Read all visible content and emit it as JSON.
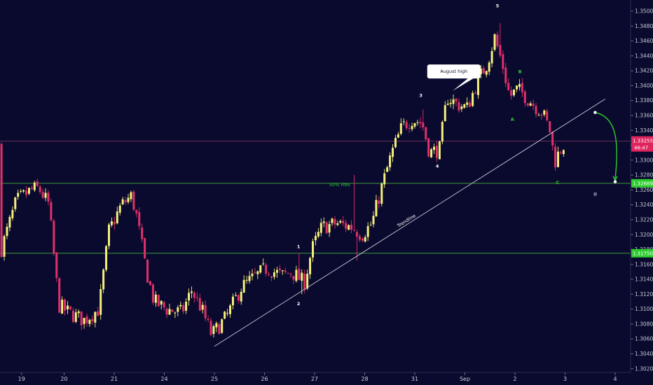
{
  "chart_data": {
    "type": "candlestick",
    "colors": {
      "background": "#0a0a2e",
      "up": "#f5f07a",
      "down": "#e0306a",
      "grid": "#1a1a44",
      "level_line": "#3c9a3c",
      "current_line": "#6a2f5a",
      "label_green": "#2ecc2e",
      "label_red": "#e0245e",
      "trendline": "#c8c8d8",
      "wave_text": "#ffffff",
      "abc_text": "#2ecc2e"
    },
    "y_range": [
      1.3015,
      1.3515
    ],
    "y_ticks": [
      "1.35000",
      "1.34800",
      "1.34600",
      "1.34400",
      "1.34200",
      "1.34000",
      "1.33800",
      "1.33600",
      "1.33400",
      "1.33200",
      "1.33000",
      "1.32800",
      "1.32600",
      "1.32400",
      "1.32200",
      "1.32000",
      "1.31800",
      "1.31600",
      "1.31400",
      "1.31200",
      "1.31000",
      "1.30800",
      "1.30600",
      "1.30400",
      "1.30200"
    ],
    "x_ticks": [
      {
        "label": "19",
        "t": 0.15
      },
      {
        "label": "20",
        "t": 1.0
      },
      {
        "label": "21",
        "t": 2.0
      },
      {
        "label": "24",
        "t": 3.0
      },
      {
        "label": "25",
        "t": 4.0
      },
      {
        "label": "26",
        "t": 5.0
      },
      {
        "label": "27",
        "t": 6.0
      },
      {
        "label": "28",
        "t": 7.0
      },
      {
        "label": "31",
        "t": 8.0
      },
      {
        "label": "Sep",
        "t": 9.0
      },
      {
        "label": "2",
        "t": 10.0
      },
      {
        "label": "3",
        "t": 11.0
      },
      {
        "label": "4",
        "t": 12.0
      }
    ],
    "price_path": [
      [
        -0.2,
        1.318
      ],
      [
        0.1,
        1.3245
      ],
      [
        0.4,
        1.326
      ],
      [
        0.55,
        1.3262
      ],
      [
        0.75,
        1.324
      ],
      [
        0.95,
        1.3105
      ],
      [
        1.15,
        1.3095
      ],
      [
        1.45,
        1.3085
      ],
      [
        1.75,
        1.31
      ],
      [
        1.95,
        1.3205
      ],
      [
        2.2,
        1.324
      ],
      [
        2.4,
        1.3252
      ],
      [
        2.5,
        1.3225
      ],
      [
        2.7,
        1.315
      ],
      [
        2.85,
        1.311
      ],
      [
        3.1,
        1.31
      ],
      [
        3.4,
        1.3095
      ],
      [
        3.6,
        1.3125
      ],
      [
        3.8,
        1.31
      ],
      [
        4.0,
        1.3065
      ],
      [
        4.3,
        1.309
      ],
      [
        4.6,
        1.313
      ],
      [
        4.9,
        1.3145
      ],
      [
        5.1,
        1.3155
      ],
      [
        5.4,
        1.3145
      ],
      [
        5.6,
        1.315
      ],
      [
        5.85,
        1.3135
      ],
      [
        6.0,
        1.318
      ],
      [
        6.2,
        1.321
      ],
      [
        6.5,
        1.3215
      ],
      [
        6.8,
        1.321
      ],
      [
        7.0,
        1.32
      ],
      [
        7.2,
        1.3215
      ],
      [
        7.4,
        1.3265
      ],
      [
        7.6,
        1.331
      ],
      [
        7.8,
        1.3345
      ],
      [
        8.0,
        1.3355
      ],
      [
        8.2,
        1.335
      ],
      [
        8.35,
        1.331
      ],
      [
        8.55,
        1.3315
      ],
      [
        8.7,
        1.3385
      ],
      [
        8.9,
        1.3375
      ],
      [
        9.1,
        1.337
      ],
      [
        9.3,
        1.3405
      ],
      [
        9.5,
        1.343
      ],
      [
        9.65,
        1.3465
      ],
      [
        9.8,
        1.343
      ],
      [
        9.95,
        1.3385
      ],
      [
        10.1,
        1.3395
      ],
      [
        10.2,
        1.339
      ],
      [
        10.35,
        1.338
      ],
      [
        10.5,
        1.337
      ],
      [
        10.6,
        1.3365
      ],
      [
        10.75,
        1.334
      ],
      [
        10.85,
        1.3298
      ],
      [
        11.0,
        1.332
      ]
    ],
    "wick_events": [
      {
        "t": 5.7,
        "hi": 1.3175
      },
      {
        "t": 6.8,
        "hi": 1.328
      },
      {
        "t": 6.85,
        "lo": 1.3165
      },
      {
        "t": 9.7,
        "hi": 1.3484
      },
      {
        "t": 8.15,
        "hi": 1.3368
      },
      {
        "t": 10.8,
        "lo": 1.3287
      },
      {
        "t": 5.75,
        "lo": 1.312
      }
    ],
    "wave_labels": [
      {
        "text": "1",
        "t": 5.68,
        "price": 1.3182
      },
      {
        "text": "2",
        "t": 5.68,
        "price": 1.3105
      },
      {
        "text": "3",
        "t": 8.12,
        "price": 1.3385
      },
      {
        "text": "4",
        "t": 8.45,
        "price": 1.329
      },
      {
        "text": "5",
        "t": 9.65,
        "price": 1.3505
      }
    ],
    "abc_labels": [
      {
        "text": "A",
        "t": 9.95,
        "price": 1.3353
      },
      {
        "text": "B",
        "t": 10.1,
        "price": 1.3417
      },
      {
        "text": "C",
        "t": 10.85,
        "price": 1.3268
      }
    ],
    "annotations": {
      "fibo": {
        "text": "50% Fibo",
        "t": 6.5,
        "price": 1.3265
      },
      "trendline": {
        "text": "Trendline",
        "t": 7.85,
        "price": 1.3217
      },
      "august_high": {
        "text": "August high",
        "t": 8.78,
        "price": 1.342
      },
      "circle_marker": {
        "text": "◍",
        "t": 11.6,
        "price": 1.3253
      }
    },
    "trendline": {
      "from": [
        4.0,
        1.305
      ],
      "to": [
        11.8,
        1.3382
      ]
    },
    "horizontal_levels": [
      {
        "price": 1.32689,
        "label": "1.32689",
        "kind": "green"
      },
      {
        "price": 1.3175,
        "label": "1.31750",
        "kind": "green"
      }
    ],
    "current_price": {
      "price": 1.33255,
      "label": "1.33255",
      "countdown": "46:47"
    },
    "projection_arrow": {
      "from": [
        11.6,
        1.3364
      ],
      "to": [
        12.0,
        1.3271
      ]
    }
  }
}
